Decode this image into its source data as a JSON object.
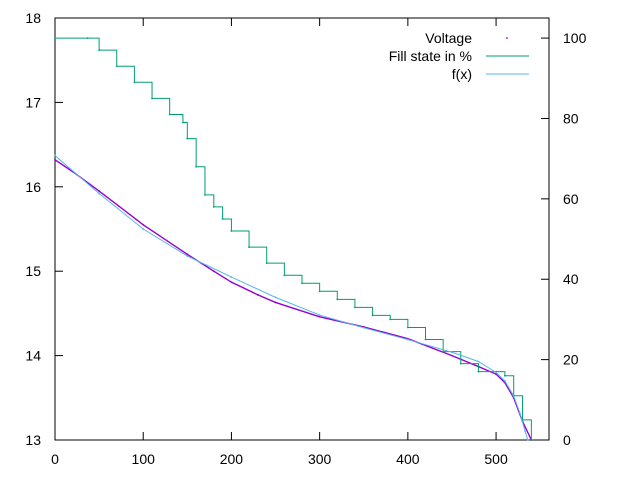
{
  "chart_data": {
    "type": "line",
    "title": "",
    "xlabel": "",
    "ylabel": "",
    "y2label": "",
    "xlim": [
      0,
      560
    ],
    "ylim": [
      13,
      18
    ],
    "y2lim": [
      0,
      105
    ],
    "x_ticks": [
      "0",
      "100",
      "200",
      "300",
      "400",
      "500"
    ],
    "y_ticks": [
      "13",
      "14",
      "15",
      "16",
      "17",
      "18"
    ],
    "y2_ticks": [
      "0",
      "20",
      "40",
      "60",
      "80",
      "100"
    ],
    "grid": false,
    "legend_position": "top-right",
    "series": [
      {
        "name": "Voltage",
        "axis": "left",
        "style": "points",
        "color": "#9400d3",
        "x": [
          0,
          20,
          50,
          100,
          150,
          180,
          200,
          230,
          250,
          300,
          350,
          400,
          450,
          480,
          500,
          510,
          520,
          530,
          540
        ],
        "y": [
          16.32,
          16.18,
          15.95,
          15.55,
          15.2,
          15.0,
          14.87,
          14.72,
          14.63,
          14.46,
          14.34,
          14.2,
          14.0,
          13.87,
          13.78,
          13.68,
          13.5,
          13.22,
          13.0
        ]
      },
      {
        "name": "Fill state in %",
        "axis": "right",
        "style": "steps",
        "color": "#009e73",
        "x": [
          0,
          37,
          50,
          70,
          90,
          110,
          130,
          145,
          150,
          160,
          170,
          180,
          190,
          200,
          220,
          240,
          260,
          280,
          300,
          320,
          340,
          360,
          380,
          400,
          420,
          440,
          460,
          480,
          500,
          510,
          520,
          530,
          540
        ],
        "y": [
          100,
          100,
          97,
          93,
          89,
          85,
          81,
          79,
          75,
          68,
          61,
          58,
          55,
          52,
          48,
          44,
          41,
          39,
          37,
          35,
          33,
          31,
          30,
          28,
          25,
          22,
          19,
          17,
          17,
          16,
          11,
          5,
          0
        ]
      },
      {
        "name": "f(x)",
        "axis": "left",
        "style": "line",
        "color": "#56b4e9",
        "x": [
          0,
          50,
          100,
          150,
          200,
          250,
          300,
          350,
          400,
          450,
          480,
          500,
          510,
          520,
          527,
          533,
          536
        ],
        "y": [
          16.37,
          15.92,
          15.5,
          15.18,
          14.93,
          14.69,
          14.48,
          14.33,
          14.19,
          14.04,
          13.93,
          13.8,
          13.7,
          13.52,
          13.32,
          13.1,
          13.0
        ]
      }
    ]
  }
}
